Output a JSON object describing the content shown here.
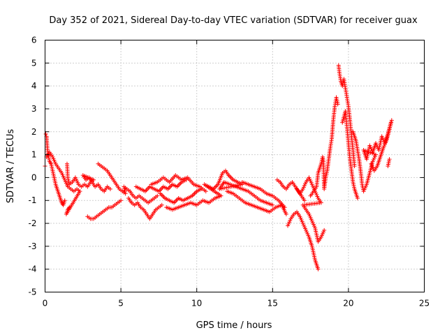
{
  "chart_data": {
    "type": "scatter",
    "title": "Day 352 of 2021, Sidereal Day-to-day VTEC variation (SDTVAR) for receiver guax",
    "xlabel": "GPS time / hours",
    "ylabel": "SDTVAR / TECUs",
    "xlim": [
      0,
      25
    ],
    "ylim": [
      -5,
      6
    ],
    "xticks": [
      "0",
      "5",
      "10",
      "15",
      "20",
      "25"
    ],
    "yticks": [
      "-5",
      "-4",
      "-3",
      "-2",
      "-1",
      "0",
      "1",
      "2",
      "3",
      "4",
      "5",
      "6"
    ],
    "grid": true,
    "marker": "+",
    "color": "#ff0000",
    "series": [
      {
        "name": "SDTVAR",
        "points": [
          [
            0.0,
            0.5
          ],
          [
            0.05,
            1.9
          ],
          [
            0.1,
            1.8
          ],
          [
            0.15,
            1.3
          ],
          [
            0.2,
            1.0
          ],
          [
            0.3,
            0.7
          ],
          [
            0.4,
            0.6
          ],
          [
            0.5,
            0.3
          ],
          [
            0.6,
            0.0
          ],
          [
            0.7,
            -0.3
          ],
          [
            0.8,
            -0.5
          ],
          [
            0.9,
            -0.7
          ],
          [
            1.0,
            -0.9
          ],
          [
            1.1,
            -1.1
          ],
          [
            1.2,
            -1.2
          ],
          [
            1.3,
            -1.0
          ],
          [
            0.1,
            0.9
          ],
          [
            0.3,
            1.1
          ],
          [
            0.5,
            0.9
          ],
          [
            0.7,
            0.6
          ],
          [
            0.9,
            0.4
          ],
          [
            1.1,
            0.2
          ],
          [
            1.3,
            -0.1
          ],
          [
            1.5,
            -0.4
          ],
          [
            1.7,
            -0.5
          ],
          [
            1.9,
            -0.6
          ],
          [
            2.1,
            -0.5
          ],
          [
            2.3,
            -0.6
          ],
          [
            1.4,
            -1.6
          ],
          [
            1.5,
            -1.4
          ],
          [
            1.6,
            -1.3
          ],
          [
            1.45,
            0.6
          ],
          [
            1.5,
            0.0
          ],
          [
            1.6,
            -0.3
          ],
          [
            1.8,
            -0.2
          ],
          [
            2.0,
            0.0
          ],
          [
            2.2,
            -0.3
          ],
          [
            2.4,
            -0.4
          ],
          [
            2.6,
            -0.3
          ],
          [
            2.8,
            -0.4
          ],
          [
            3.0,
            -0.2
          ],
          [
            3.2,
            -0.1
          ],
          [
            2.5,
            0.1
          ],
          [
            2.7,
            -0.1
          ],
          [
            2.9,
            0.0
          ],
          [
            3.1,
            -0.2
          ],
          [
            3.3,
            -0.4
          ],
          [
            3.5,
            -0.3
          ],
          [
            3.7,
            -0.5
          ],
          [
            3.9,
            -0.6
          ],
          [
            4.1,
            -0.4
          ],
          [
            4.3,
            -0.5
          ],
          [
            2.8,
            -1.7
          ],
          [
            3.0,
            -1.8
          ],
          [
            3.2,
            -1.8
          ],
          [
            3.4,
            -1.7
          ],
          [
            3.6,
            -1.6
          ],
          [
            3.8,
            -1.5
          ],
          [
            4.0,
            -1.4
          ],
          [
            4.2,
            -1.3
          ],
          [
            4.4,
            -1.3
          ],
          [
            4.6,
            -1.2
          ],
          [
            4.8,
            -1.1
          ],
          [
            5.0,
            -1.0
          ],
          [
            3.5,
            0.6
          ],
          [
            3.7,
            0.5
          ],
          [
            3.9,
            0.4
          ],
          [
            4.1,
            0.3
          ],
          [
            4.3,
            0.1
          ],
          [
            4.5,
            -0.1
          ],
          [
            4.7,
            -0.3
          ],
          [
            4.9,
            -0.5
          ],
          [
            5.1,
            -0.6
          ],
          [
            5.3,
            -0.7
          ],
          [
            5.2,
            -0.4
          ],
          [
            5.4,
            -0.5
          ],
          [
            5.6,
            -0.6
          ],
          [
            5.8,
            -0.8
          ],
          [
            6.0,
            -0.9
          ],
          [
            6.2,
            -0.8
          ],
          [
            6.4,
            -0.9
          ],
          [
            6.6,
            -1.0
          ],
          [
            6.8,
            -1.1
          ],
          [
            7.0,
            -1.0
          ],
          [
            7.2,
            -0.9
          ],
          [
            7.4,
            -0.8
          ],
          [
            5.5,
            -0.9
          ],
          [
            5.7,
            -1.1
          ],
          [
            5.9,
            -1.2
          ],
          [
            6.1,
            -1.1
          ],
          [
            6.3,
            -1.3
          ],
          [
            6.5,
            -1.4
          ],
          [
            6.7,
            -1.6
          ],
          [
            6.9,
            -1.8
          ],
          [
            7.1,
            -1.6
          ],
          [
            7.3,
            -1.4
          ],
          [
            7.5,
            -1.3
          ],
          [
            7.7,
            -1.2
          ],
          [
            6.0,
            -0.4
          ],
          [
            6.3,
            -0.5
          ],
          [
            6.6,
            -0.6
          ],
          [
            6.9,
            -0.4
          ],
          [
            7.2,
            -0.5
          ],
          [
            7.5,
            -0.6
          ],
          [
            7.8,
            -0.4
          ],
          [
            8.1,
            -0.5
          ],
          [
            8.4,
            -0.3
          ],
          [
            8.7,
            -0.4
          ],
          [
            9.0,
            -0.2
          ],
          [
            9.3,
            -0.1
          ],
          [
            7.6,
            -0.7
          ],
          [
            7.9,
            -0.9
          ],
          [
            8.2,
            -1.0
          ],
          [
            8.5,
            -1.1
          ],
          [
            8.8,
            -0.9
          ],
          [
            9.1,
            -1.0
          ],
          [
            9.4,
            -0.9
          ],
          [
            9.7,
            -0.8
          ],
          [
            10.0,
            -0.6
          ],
          [
            10.3,
            -0.5
          ],
          [
            7.0,
            -0.3
          ],
          [
            7.4,
            -0.2
          ],
          [
            7.8,
            0.0
          ],
          [
            8.2,
            -0.2
          ],
          [
            8.6,
            0.1
          ],
          [
            9.0,
            -0.1
          ],
          [
            9.4,
            0.0
          ],
          [
            9.8,
            -0.3
          ],
          [
            10.2,
            -0.4
          ],
          [
            10.6,
            -0.6
          ],
          [
            8.0,
            -1.3
          ],
          [
            8.4,
            -1.4
          ],
          [
            8.8,
            -1.3
          ],
          [
            9.2,
            -1.2
          ],
          [
            9.6,
            -1.1
          ],
          [
            10.0,
            -1.2
          ],
          [
            10.4,
            -1.0
          ],
          [
            10.8,
            -1.1
          ],
          [
            11.2,
            -0.9
          ],
          [
            11.6,
            -0.8
          ],
          [
            10.5,
            -0.3
          ],
          [
            10.8,
            -0.4
          ],
          [
            11.1,
            -0.5
          ],
          [
            11.4,
            -0.3
          ],
          [
            11.7,
            0.2
          ],
          [
            11.9,
            0.3
          ],
          [
            12.1,
            0.1
          ],
          [
            12.4,
            -0.1
          ],
          [
            12.7,
            -0.2
          ],
          [
            13.0,
            -0.3
          ],
          [
            11.5,
            -0.5
          ],
          [
            11.8,
            -0.2
          ],
          [
            12.2,
            -0.3
          ],
          [
            12.6,
            -0.4
          ],
          [
            13.0,
            -0.5
          ],
          [
            13.4,
            -0.6
          ],
          [
            13.8,
            -0.8
          ],
          [
            14.2,
            -1.0
          ],
          [
            14.6,
            -1.1
          ],
          [
            15.0,
            -1.2
          ],
          [
            12.0,
            -0.6
          ],
          [
            12.4,
            -0.7
          ],
          [
            12.8,
            -0.9
          ],
          [
            13.2,
            -1.1
          ],
          [
            13.6,
            -1.2
          ],
          [
            14.0,
            -1.3
          ],
          [
            14.4,
            -1.4
          ],
          [
            14.8,
            -1.5
          ],
          [
            15.2,
            -1.3
          ],
          [
            15.6,
            -1.2
          ],
          [
            15.9,
            -1.6
          ],
          [
            13.0,
            -0.2
          ],
          [
            13.4,
            -0.3
          ],
          [
            13.8,
            -0.4
          ],
          [
            14.2,
            -0.5
          ],
          [
            14.6,
            -0.7
          ],
          [
            15.0,
            -0.8
          ],
          [
            15.4,
            -1.0
          ],
          [
            15.8,
            -1.3
          ],
          [
            15.3,
            -0.1
          ],
          [
            15.5,
            -0.2
          ],
          [
            15.7,
            -0.4
          ],
          [
            15.9,
            -0.5
          ],
          [
            16.1,
            -0.3
          ],
          [
            16.3,
            -0.2
          ],
          [
            16.5,
            -0.4
          ],
          [
            16.7,
            -0.6
          ],
          [
            16.9,
            -0.8
          ],
          [
            17.1,
            -1.0
          ],
          [
            16.0,
            -2.1
          ],
          [
            16.2,
            -1.8
          ],
          [
            16.4,
            -1.6
          ],
          [
            16.6,
            -1.5
          ],
          [
            16.8,
            -1.7
          ],
          [
            17.0,
            -2.0
          ],
          [
            17.2,
            -2.3
          ],
          [
            17.4,
            -2.6
          ],
          [
            17.6,
            -3.0
          ],
          [
            17.8,
            -3.6
          ],
          [
            18.0,
            -4.0
          ],
          [
            16.6,
            -0.5
          ],
          [
            16.8,
            -0.7
          ],
          [
            17.0,
            -0.5
          ],
          [
            17.2,
            -0.2
          ],
          [
            17.4,
            0.0
          ],
          [
            17.6,
            -0.3
          ],
          [
            17.8,
            -0.6
          ],
          [
            18.0,
            -0.9
          ],
          [
            18.2,
            -1.1
          ],
          [
            17.0,
            -1.2
          ],
          [
            17.2,
            -1.4
          ],
          [
            17.4,
            -1.6
          ],
          [
            17.6,
            -1.9
          ],
          [
            17.8,
            -2.2
          ],
          [
            18.0,
            -2.8
          ],
          [
            18.2,
            -2.6
          ],
          [
            18.4,
            -2.3
          ],
          [
            17.5,
            -0.8
          ],
          [
            17.7,
            -0.6
          ],
          [
            17.9,
            -0.4
          ],
          [
            18.0,
            0.2
          ],
          [
            18.1,
            0.4
          ],
          [
            18.2,
            0.6
          ],
          [
            18.3,
            0.9
          ],
          [
            18.35,
            0.7
          ],
          [
            18.4,
            -0.5
          ],
          [
            18.5,
            0.0
          ],
          [
            18.6,
            0.3
          ],
          [
            18.7,
            0.8
          ],
          [
            18.8,
            1.3
          ],
          [
            18.9,
            1.7
          ],
          [
            19.0,
            2.5
          ],
          [
            19.1,
            3.1
          ],
          [
            19.2,
            3.5
          ],
          [
            19.3,
            3.2
          ],
          [
            19.35,
            4.9
          ],
          [
            19.4,
            4.6
          ],
          [
            19.5,
            4.2
          ],
          [
            19.6,
            4.0
          ],
          [
            19.7,
            4.3
          ],
          [
            19.8,
            3.9
          ],
          [
            19.9,
            3.5
          ],
          [
            20.0,
            3.1
          ],
          [
            20.1,
            2.5
          ],
          [
            20.2,
            1.8
          ],
          [
            20.3,
            1.2
          ],
          [
            20.4,
            0.5
          ],
          [
            19.6,
            2.4
          ],
          [
            19.8,
            2.9
          ],
          [
            19.9,
            2.2
          ],
          [
            20.0,
            1.5
          ],
          [
            20.1,
            0.8
          ],
          [
            20.2,
            0.3
          ],
          [
            20.3,
            -0.2
          ],
          [
            20.4,
            -0.5
          ],
          [
            20.5,
            -0.7
          ],
          [
            20.6,
            -0.9
          ],
          [
            20.3,
            2.0
          ],
          [
            20.5,
            1.6
          ],
          [
            20.7,
            0.8
          ],
          [
            20.8,
            0.3
          ],
          [
            20.9,
            -0.3
          ],
          [
            21.0,
            -0.6
          ],
          [
            21.2,
            -0.3
          ],
          [
            21.4,
            0.2
          ],
          [
            21.6,
            0.7
          ],
          [
            21.8,
            1.0
          ],
          [
            21.0,
            1.2
          ],
          [
            21.2,
            0.8
          ],
          [
            21.4,
            1.4
          ],
          [
            21.6,
            1.1
          ],
          [
            21.8,
            1.5
          ],
          [
            22.0,
            1.2
          ],
          [
            22.2,
            1.8
          ],
          [
            22.4,
            1.5
          ],
          [
            22.6,
            1.9
          ],
          [
            22.8,
            2.4
          ],
          [
            21.5,
            0.6
          ],
          [
            21.7,
            0.3
          ],
          [
            21.9,
            0.5
          ],
          [
            22.1,
            0.9
          ],
          [
            22.3,
            1.3
          ],
          [
            22.5,
            1.6
          ],
          [
            22.7,
            2.1
          ],
          [
            22.85,
            2.5
          ],
          [
            22.7,
            0.8
          ],
          [
            22.6,
            0.5
          ]
        ]
      }
    ]
  }
}
